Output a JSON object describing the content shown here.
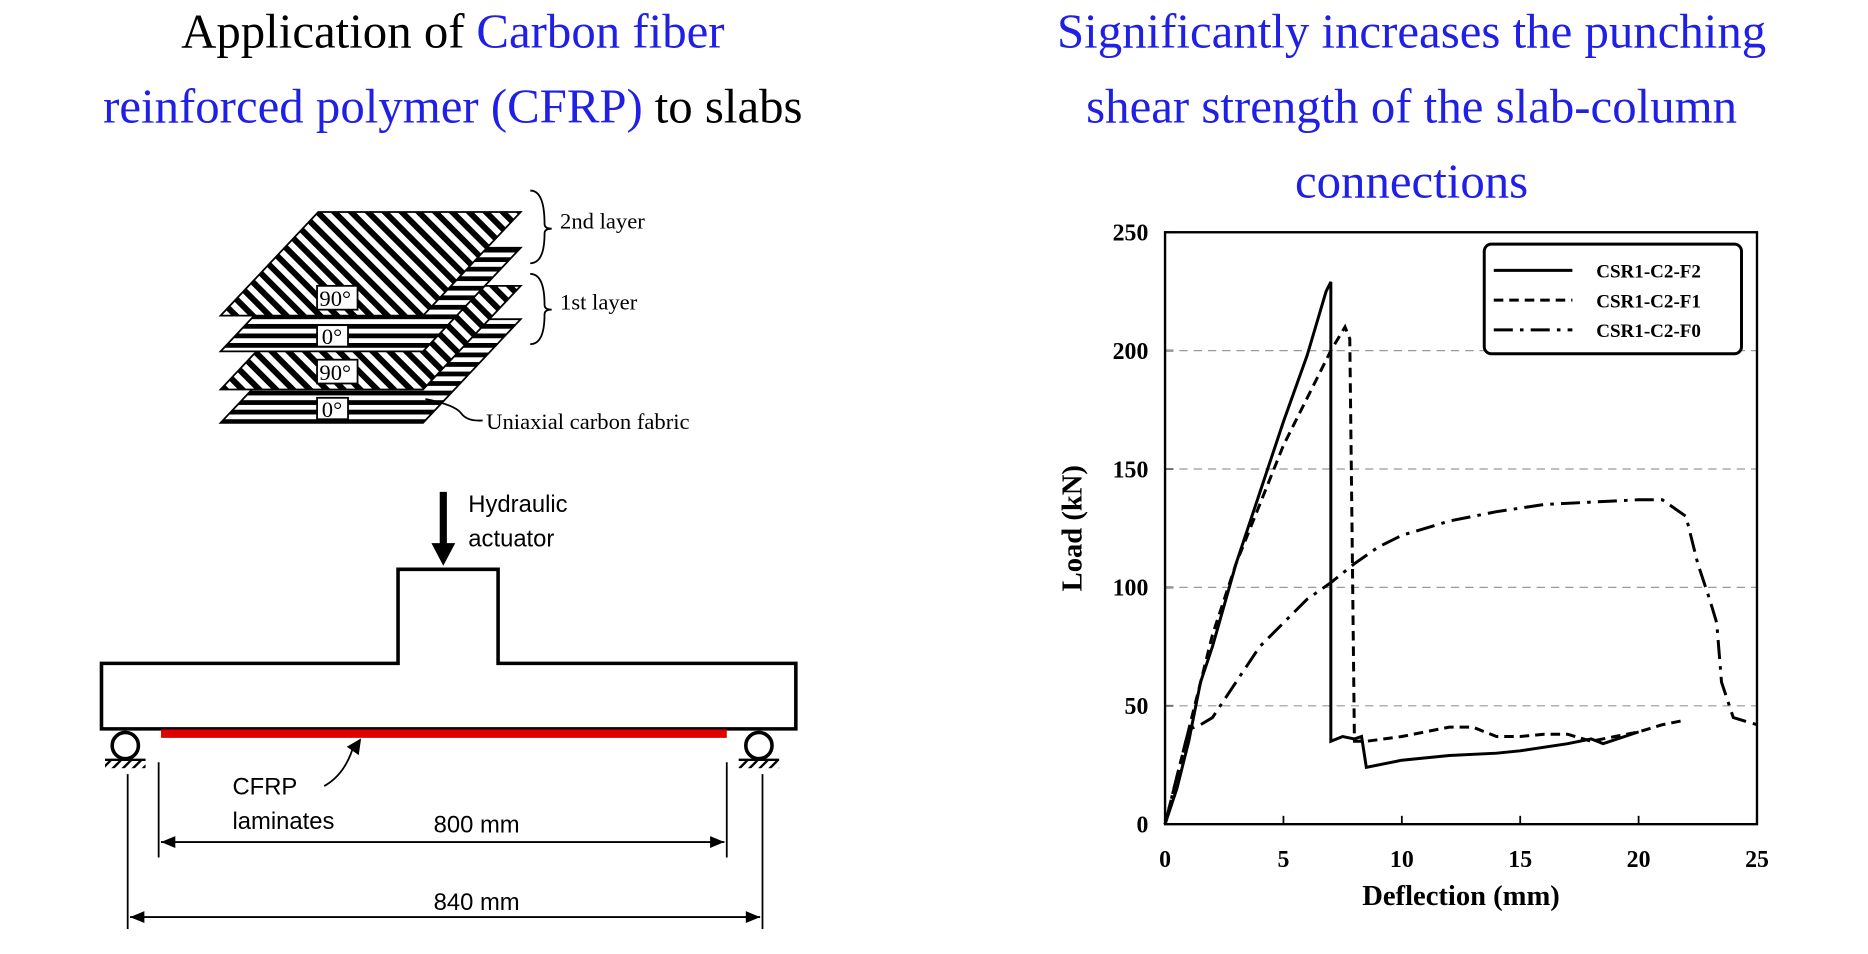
{
  "left_title": {
    "line1": [
      "Application of",
      "Carbon fiber"
    ],
    "line2": [
      "reinforced polymer (CFRP)",
      "to slabs"
    ]
  },
  "right_title": [
    "Significantly increases the punching",
    "shear strength of the slab-column",
    "connections"
  ],
  "diagram": {
    "layer_labels": [
      "2nd layer",
      "1st layer"
    ],
    "angle_labels": [
      "90°",
      "0°",
      "90°",
      "0°"
    ],
    "fabric_label": "Uniaxial carbon fabric",
    "actuator_label": [
      "Hydraulic",
      "actuator"
    ],
    "laminate_label": [
      "CFRP",
      "laminates"
    ],
    "dimensions": [
      "800 mm",
      "840 mm"
    ]
  },
  "chart_data": {
    "type": "line",
    "x_label": "Deflection (mm)",
    "y_label": "Load (kN)",
    "xlim": [
      0,
      25
    ],
    "ylim": [
      0,
      250
    ],
    "xticks": [
      0,
      5,
      10,
      15,
      20,
      25
    ],
    "yticks": [
      0,
      50,
      100,
      150,
      200,
      250
    ],
    "grid": true,
    "legend": "upper right",
    "series": [
      {
        "name": "CSR1-C2-F2",
        "color": "#000000",
        "dash": "solid",
        "x": [
          0,
          0.5,
          1,
          1.5,
          2,
          3,
          4,
          5,
          6,
          6.8,
          7,
          7,
          7.5,
          8,
          8.3,
          8.5,
          10,
          12,
          14,
          15,
          17,
          18,
          18.5,
          20
        ],
        "values": [
          0,
          15,
          35,
          60,
          75,
          110,
          140,
          170,
          198,
          225,
          229,
          35,
          37,
          36,
          37,
          24,
          27,
          29,
          30,
          31,
          34,
          36,
          34,
          39
        ]
      },
      {
        "name": "CSR1-C2-F1",
        "color": "#000000",
        "dash": "dashed",
        "x": [
          0,
          1,
          2,
          3,
          4,
          5,
          6,
          7,
          7.6,
          7.8,
          7.9,
          8,
          8.5,
          10,
          12,
          13,
          14,
          15,
          16,
          17,
          18,
          19,
          20,
          21,
          22
        ],
        "values": [
          0,
          40,
          80,
          110,
          135,
          160,
          180,
          200,
          210,
          205,
          120,
          35,
          35,
          37,
          41,
          41,
          37,
          37,
          38,
          38,
          35,
          37,
          39,
          42,
          44
        ]
      },
      {
        "name": "CSR1-C2-F0",
        "color": "#000000",
        "dash": "dashdot",
        "x": [
          0,
          0.5,
          1,
          1.5,
          2,
          3,
          4,
          5,
          6,
          7,
          8,
          9,
          10,
          12,
          14,
          16,
          18,
          20,
          21,
          22,
          22.5,
          23,
          23.3,
          23.5,
          24,
          25
        ],
        "values": [
          0,
          20,
          40,
          42,
          45,
          60,
          75,
          85,
          95,
          102,
          110,
          117,
          122,
          128,
          132,
          135,
          136,
          137,
          137,
          130,
          110,
          95,
          85,
          60,
          45,
          42
        ]
      }
    ]
  }
}
